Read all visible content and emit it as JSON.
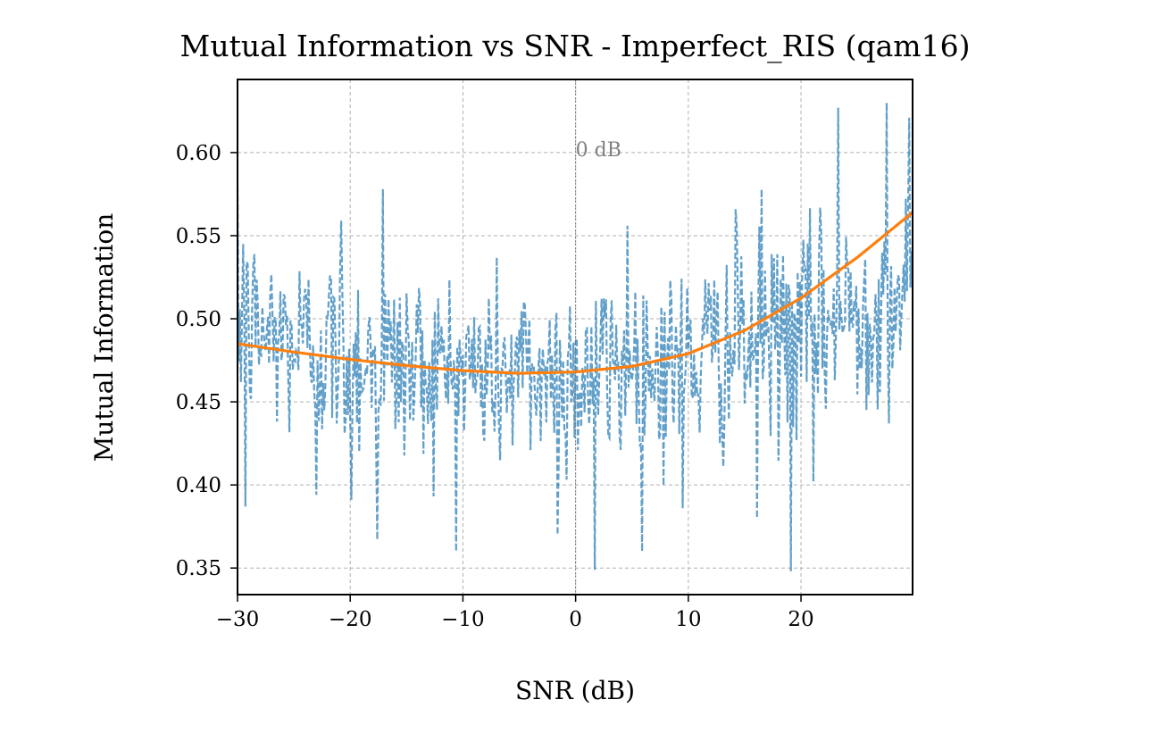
{
  "chart_data": {
    "type": "line",
    "title": "Mutual Information vs SNR - Imperfect_RIS (qam16)",
    "xlabel": "SNR (dB)",
    "ylabel": "Mutual Information",
    "xlim": [
      -30,
      29.9
    ],
    "ylim": [
      0.334,
      0.644
    ],
    "xticks": [
      -30,
      -20,
      -10,
      0,
      10,
      20
    ],
    "xtick_labels": [
      "−30",
      "−20",
      "−10",
      "0",
      "10",
      "20"
    ],
    "yticks": [
      0.35,
      0.4,
      0.45,
      0.5,
      0.55,
      0.6
    ],
    "ytick_labels": [
      "0.35",
      "0.40",
      "0.45",
      "0.50",
      "0.55",
      "0.60"
    ],
    "grid": true,
    "legend": "none",
    "annotations": [
      {
        "text": "0 dB",
        "x": 0,
        "y": 0.6,
        "vline_x": 0
      }
    ],
    "series": [
      {
        "style": "dashed",
        "color": "#1f77b4",
        "alpha": 0.7,
        "x_start": -30,
        "x_step": 0.1,
        "points": 600,
        "noise_sd": 0.03,
        "trend_coeffs": [
          0.468,
          0.000374,
          4.41e-05
        ],
        "extremes": [
          {
            "x": -29.3,
            "y": 0.387
          },
          {
            "x": -29.5,
            "y": 0.545
          },
          {
            "x": -23.0,
            "y": 0.394
          },
          {
            "x": -20.8,
            "y": 0.559
          },
          {
            "x": -19.9,
            "y": 0.391
          },
          {
            "x": -17.6,
            "y": 0.367
          },
          {
            "x": -17.1,
            "y": 0.578
          },
          {
            "x": -1.6,
            "y": 0.37
          },
          {
            "x": 1.7,
            "y": 0.349
          },
          {
            "x": 4.6,
            "y": 0.556
          },
          {
            "x": 9.5,
            "y": 0.386
          },
          {
            "x": 14.2,
            "y": 0.566
          },
          {
            "x": 16.1,
            "y": 0.38
          },
          {
            "x": 16.5,
            "y": 0.578
          },
          {
            "x": 19.1,
            "y": 0.348
          },
          {
            "x": 21.1,
            "y": 0.402
          },
          {
            "x": 23.3,
            "y": 0.627
          },
          {
            "x": 27.6,
            "y": 0.63
          },
          {
            "x": 28.1,
            "y": 0.47
          },
          {
            "x": 29.6,
            "y": 0.621
          }
        ]
      },
      {
        "style": "solid",
        "color": "#ff7f0e",
        "x": [
          -30,
          -25,
          -20,
          -15,
          -10,
          -5,
          0,
          5,
          10,
          15,
          20,
          25,
          29.9
        ],
        "y": [
          0.485,
          0.48,
          0.4755,
          0.4718,
          0.4688,
          0.4672,
          0.468,
          0.4713,
          0.479,
          0.493,
          0.5125,
          0.537,
          0.564
        ]
      }
    ]
  }
}
